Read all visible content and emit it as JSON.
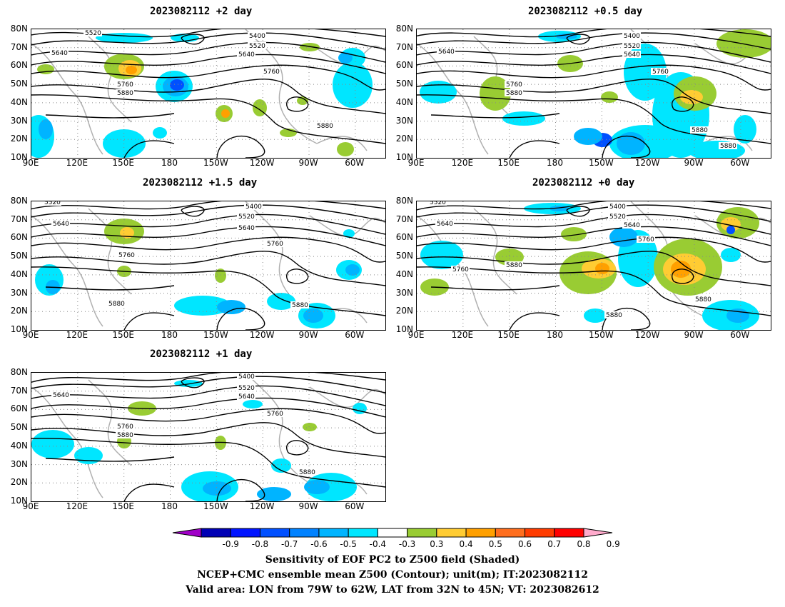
{
  "panels": [
    {
      "title": "2023082112  +2 day"
    },
    {
      "title": "2023082112  +0.5 day"
    },
    {
      "title": "2023082112  +1.5 day"
    },
    {
      "title": "2023082112  +0 day"
    },
    {
      "title": "2023082112  +1 day"
    }
  ],
  "axes": {
    "lat_labels": [
      "80N",
      "70N",
      "60N",
      "50N",
      "40N",
      "30N",
      "20N",
      "10N"
    ],
    "lon_labels": [
      "90E",
      "120E",
      "150E",
      "180",
      "150W",
      "120W",
      "90W",
      "60W"
    ]
  },
  "contour_labels": [
    "5400",
    "5520",
    "5640",
    "5760",
    "5880"
  ],
  "colorbar": {
    "labels": [
      "-0.9",
      "-0.8",
      "-0.7",
      "-0.6",
      "-0.5",
      "-0.4",
      "-0.3",
      "0.3",
      "0.4",
      "0.5",
      "0.6",
      "0.7",
      "0.8",
      "0.9"
    ],
    "colors": [
      "#a000c8",
      "#0000b4",
      "#0014ff",
      "#0050ff",
      "#0082ff",
      "#00b4ff",
      "#00e6ff",
      "#ffffff",
      "#99cc33",
      "#ffcc33",
      "#ffa000",
      "#ff6e1e",
      "#ff3c00",
      "#ff0000",
      "#ffaacc"
    ]
  },
  "caption": {
    "line1": "Sensitivity of EOF PC2 to Z500 field (Shaded)",
    "line2": "NCEP+CMC ensemble mean Z500 (Contour); unit(m); IT:2023082112",
    "line3": "Valid area: LON from 79W to 62W, LAT from 32N to 45N; VT: 2023082612"
  }
}
